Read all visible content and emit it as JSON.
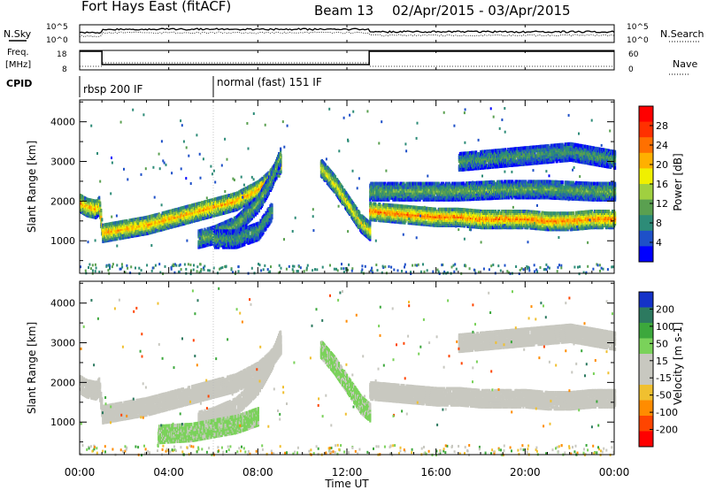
{
  "header": {
    "station": "Fort Hays East (fitACF)",
    "beam": "Beam 13",
    "date_range": "02/Apr/2015 - 03/Apr/2015"
  },
  "strip": {
    "nsky_label": "N.Sky",
    "nsearch_label": "N.Search",
    "freq_label_1": "Freq.",
    "freq_label_2": "[MHz]",
    "nave_label": "Nave",
    "cpid_label": "CPID",
    "nsky_ticks": [
      "10^5",
      "10^0"
    ],
    "nsearch_ticks": [
      "10^5",
      "10^0"
    ],
    "freq_ticks": [
      "18",
      "8"
    ],
    "nave_ticks": [
      "60",
      "0"
    ],
    "cpid_segments": [
      {
        "start": 0,
        "end": 6,
        "label": "rbsp 200 IF"
      },
      {
        "start": 6,
        "end": 24,
        "label": "normal (fast) 151 IF"
      }
    ]
  },
  "colors": {
    "power_scale": [
      "#0000ff",
      "#1e50c8",
      "#2d8c78",
      "#5aa050",
      "#a0d040",
      "#f0f000",
      "#ffb000",
      "#ff7000",
      "#ff3000",
      "#ff0000"
    ],
    "velocity_scale": [
      "#1432c8",
      "#2d7a60",
      "#3ca83c",
      "#7ad25a",
      "#c8c8c0",
      "#c8c8c0",
      "#f0c030",
      "#ff8c00",
      "#ff4500",
      "#ff0000"
    ]
  },
  "chart_data": [
    {
      "type": "heatmap",
      "name": "power",
      "xlabel": "",
      "ylabel": "Slant Range [km]",
      "xlim": [
        0,
        24
      ],
      "ylim": [
        180,
        4550
      ],
      "yticks": [
        1000,
        2000,
        3000,
        4000
      ],
      "colorbar": {
        "label": "Power [dB]",
        "ticks": [
          "28",
          "24",
          "20",
          "16",
          "12",
          "8",
          "4"
        ],
        "range": [
          0,
          32
        ]
      },
      "echo_bands": [
        {
          "x": [
            0.0,
            0.3,
            0.7,
            0.85,
            1.0,
            2,
            3,
            4,
            5,
            6,
            7,
            8,
            8.5,
            9
          ],
          "y": [
            2000,
            1900,
            1850,
            1950,
            1250,
            1350,
            1450,
            1600,
            1750,
            1900,
            2050,
            2350,
            2600,
            3000
          ],
          "power": 22
        },
        {
          "x": [
            5.3,
            6.0,
            7.0,
            8.0,
            8.6,
            9.0
          ],
          "y": [
            1100,
            1200,
            1450,
            2000,
            2600,
            3200
          ],
          "power": 12
        },
        {
          "x": [
            6,
            7,
            8,
            8.6
          ],
          "y": [
            1100,
            1100,
            1300,
            1800
          ],
          "power": 10
        },
        {
          "x": [
            10.8,
            11.4,
            12.0,
            12.6,
            13.0
          ],
          "y": [
            2900,
            2500,
            2000,
            1500,
            1300
          ],
          "power": 18
        },
        {
          "x": [
            13,
            14,
            15,
            16,
            17,
            18,
            19,
            20,
            21,
            22,
            23,
            24
          ],
          "y": [
            1800,
            1750,
            1700,
            1650,
            1650,
            1600,
            1600,
            1600,
            1550,
            1550,
            1600,
            1600
          ],
          "power": 24
        },
        {
          "x": [
            13,
            15,
            17,
            19,
            21,
            23,
            24
          ],
          "y": [
            2300,
            2300,
            2300,
            2350,
            2350,
            2300,
            2300
          ],
          "power": 12
        },
        {
          "x": [
            17,
            19,
            21,
            22,
            23,
            24
          ],
          "y": [
            3050,
            3150,
            3250,
            3300,
            3200,
            3100
          ],
          "power": 10
        }
      ]
    },
    {
      "type": "heatmap",
      "name": "velocity",
      "xlabel": "Time UT",
      "ylabel": "Slant Range [km]",
      "xlim": [
        0,
        24
      ],
      "ylim": [
        180,
        4550
      ],
      "yticks": [
        1000,
        2000,
        3000,
        4000
      ],
      "xticks": [
        "00:00",
        "04:00",
        "08:00",
        "12:00",
        "16:00",
        "20:00",
        "00:00"
      ],
      "colorbar": {
        "label": "Velocity [m s-1]",
        "ticks": [
          "200",
          "100",
          "50",
          "15",
          "-15",
          "-50",
          "-100",
          "-200"
        ],
        "range": [
          -250,
          250
        ]
      },
      "echo_bands": [
        {
          "x": [
            0.0,
            0.3,
            0.7,
            0.85,
            1.0,
            2,
            3,
            4,
            5,
            6,
            7,
            8,
            8.5,
            9
          ],
          "y": [
            2000,
            1900,
            1850,
            1950,
            1250,
            1350,
            1450,
            1600,
            1750,
            1900,
            2050,
            2350,
            2600,
            3000
          ],
          "velocity": 0
        },
        {
          "x": [
            5.3,
            6.0,
            7.0,
            8.0,
            8.6,
            9.0
          ],
          "y": [
            1100,
            1200,
            1450,
            2000,
            2600,
            3200
          ],
          "velocity": -10
        },
        {
          "x": [
            3.5,
            5.0,
            6.0,
            7.0,
            8.0
          ],
          "y": [
            750,
            800,
            900,
            1000,
            1200
          ],
          "velocity": 60
        },
        {
          "x": [
            10.8,
            11.4,
            12.0,
            12.6,
            13.0
          ],
          "y": [
            2900,
            2500,
            2000,
            1500,
            1300
          ],
          "velocity": 60
        },
        {
          "x": [
            13,
            14,
            15,
            16,
            17,
            18,
            19,
            20,
            21,
            22,
            23,
            24
          ],
          "y": [
            1850,
            1800,
            1750,
            1700,
            1700,
            1650,
            1650,
            1650,
            1600,
            1600,
            1650,
            1650
          ],
          "velocity": 0
        },
        {
          "x": [
            17,
            19,
            21,
            22,
            23,
            24
          ],
          "y": [
            3050,
            3150,
            3250,
            3300,
            3200,
            3100
          ],
          "velocity": -10
        }
      ]
    }
  ]
}
